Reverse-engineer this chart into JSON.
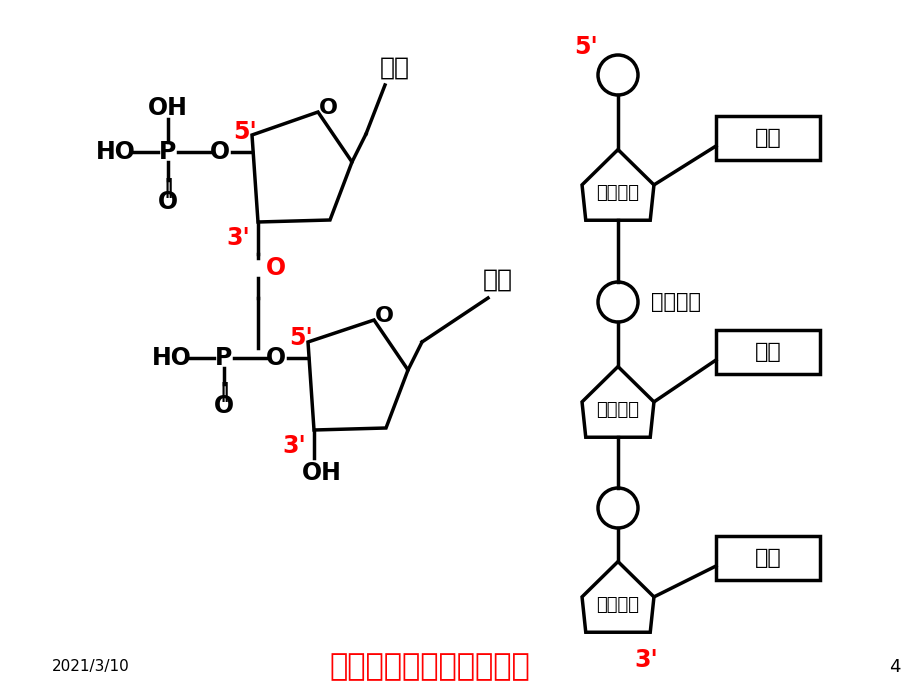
{
  "bg_color": "#ffffff",
  "title": "多脱氧核苷酸链结构简图",
  "date": "2021/3/10",
  "page": "4",
  "red_color": "#ff0000",
  "black_color": "#000000",
  "lw": 2.5
}
